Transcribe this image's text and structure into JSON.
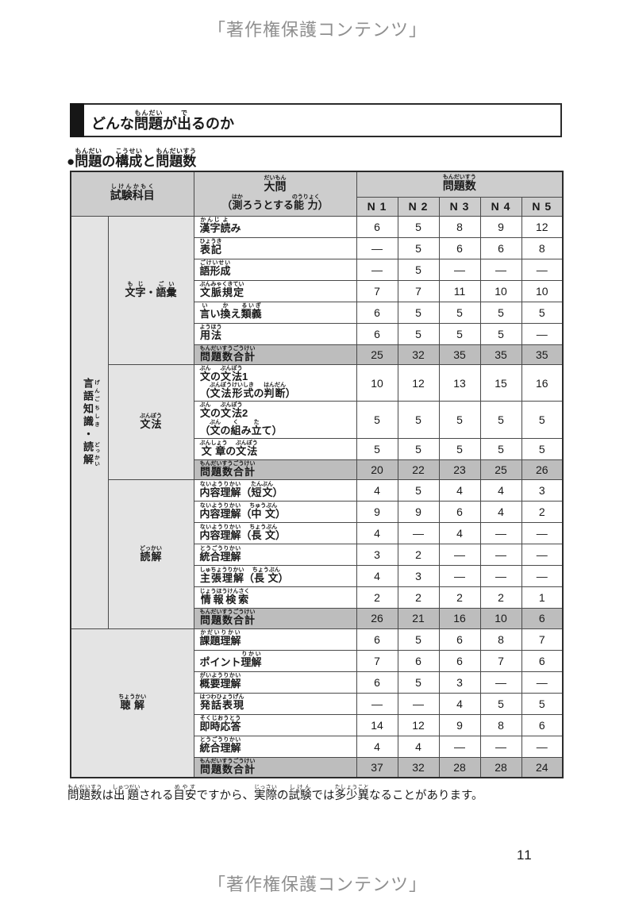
{
  "page": {
    "copyright_top": "「著作権保護コンテンツ」",
    "copyright_bottom": "「著作権保護コンテンツ」",
    "page_number": "11"
  },
  "heading": {
    "title": "どんな問題[もんだい]が出[で]るのか"
  },
  "section_title": "●問題[もんだい]の構成[こうせい]と問題数[もんだいすう]",
  "note": "問題数[もんだいすう]は出題[しゅつだい]される目安[めやす]ですから、実際[じっさい]の試験[しけん]では多少[たしょう]異[こと]なることがあります。",
  "colors": {
    "header_bg": "#cdcdcd",
    "label_bg": "#e4e4e4",
    "total_bg": "#bdbdbd",
    "text": "#1a1a1a",
    "copyright_gray": "#8f8f8f",
    "border": "#4a4a4a",
    "heading_bar": "#161616"
  },
  "table": {
    "headers": {
      "subject": "試験科目[しけんかもく]",
      "daimon_line1": "大問[だいもん]",
      "daimon_line2": "（測[はか]ろうとする能力[のうりょく]）",
      "question_count": "問題数[もんだいすう]",
      "levels": [
        "N 1",
        "N 2",
        "N 3",
        "N 4",
        "N 5"
      ]
    },
    "group_label": "言語[げんご]知識[ちしき]・読解[どっかい]",
    "sections": [
      {
        "label": "文字[もじ]・語彙[ごい]",
        "in_group": true,
        "rows": [
          {
            "label": [
              "漢字[かんじ]読[よ]み"
            ],
            "values": [
              "6",
              "5",
              "8",
              "9",
              "12"
            ],
            "total": false
          },
          {
            "label": [
              "表記[ひょうき]"
            ],
            "values": [
              "—",
              "5",
              "6",
              "6",
              "8"
            ],
            "total": false
          },
          {
            "label": [
              "語形成[ごけいせい]"
            ],
            "values": [
              "—",
              "5",
              "—",
              "—",
              "—"
            ],
            "total": false
          },
          {
            "label": [
              "文脈規定[ぶんみゃくきてい]"
            ],
            "values": [
              "7",
              "7",
              "11",
              "10",
              "10"
            ],
            "total": false
          },
          {
            "label": [
              "言[い]い換[か]え類義[るいぎ]"
            ],
            "values": [
              "6",
              "5",
              "5",
              "5",
              "5"
            ],
            "total": false
          },
          {
            "label": [
              "用法[ようほう]"
            ],
            "values": [
              "6",
              "5",
              "5",
              "5",
              "—"
            ],
            "total": false
          },
          {
            "label": [
              "問題数合計[もんだいすうごうけい]"
            ],
            "values": [
              "25",
              "32",
              "35",
              "35",
              "35"
            ],
            "total": true
          }
        ]
      },
      {
        "label": "文法[ぶんぽう]",
        "in_group": true,
        "rows": [
          {
            "label": [
              "文[ぶん]の文法[ぶんぽう]1",
              "（文法形式[ぶんぽうけいしき]の判断[はんだん]）"
            ],
            "values": [
              "10",
              "12",
              "13",
              "15",
              "16"
            ],
            "total": false
          },
          {
            "label": [
              "文[ぶん]の文法[ぶんぽう]2",
              "（文[ぶん]の組[く]み立[た]て）"
            ],
            "values": [
              "5",
              "5",
              "5",
              "5",
              "5"
            ],
            "total": false
          },
          {
            "label": [
              "文章[ぶんしょう]の文法[ぶんぽう]"
            ],
            "values": [
              "5",
              "5",
              "5",
              "5",
              "5"
            ],
            "total": false
          },
          {
            "label": [
              "問題数合計[もんだいすうごうけい]"
            ],
            "values": [
              "20",
              "22",
              "23",
              "25",
              "26"
            ],
            "total": true
          }
        ]
      },
      {
        "label": "読解[どっかい]",
        "in_group": true,
        "rows": [
          {
            "label": [
              "内容理解[ないようりかい]（短文[たんぶん]）"
            ],
            "values": [
              "4",
              "5",
              "4",
              "4",
              "3"
            ],
            "total": false
          },
          {
            "label": [
              "内容理解[ないようりかい]（中文[ちゅうぶん]）"
            ],
            "values": [
              "9",
              "9",
              "6",
              "4",
              "2"
            ],
            "total": false
          },
          {
            "label": [
              "内容理解[ないようりかい]（長文[ちょうぶん]）"
            ],
            "values": [
              "4",
              "—",
              "4",
              "—",
              "—"
            ],
            "total": false
          },
          {
            "label": [
              "統合理解[とうごうりかい]"
            ],
            "values": [
              "3",
              "2",
              "—",
              "—",
              "—"
            ],
            "total": false
          },
          {
            "label": [
              "主張理解[しゅちょうりかい]（長文[ちょうぶん]）"
            ],
            "values": [
              "4",
              "3",
              "—",
              "—",
              "—"
            ],
            "total": false
          },
          {
            "label": [
              "情報検索[じょうほうけんさく]"
            ],
            "values": [
              "2",
              "2",
              "2",
              "2",
              "1"
            ],
            "total": false
          },
          {
            "label": [
              "問題数合計[もんだいすうごうけい]"
            ],
            "values": [
              "26",
              "21",
              "16",
              "10",
              "6"
            ],
            "total": true
          }
        ]
      },
      {
        "label": "聴解[ちょうかい]",
        "in_group": false,
        "rows": [
          {
            "label": [
              "課題理解[かだいりかい]"
            ],
            "values": [
              "6",
              "5",
              "6",
              "8",
              "7"
            ],
            "total": false
          },
          {
            "label": [
              "ポイント理解[りかい]"
            ],
            "values": [
              "7",
              "6",
              "6",
              "7",
              "6"
            ],
            "total": false
          },
          {
            "label": [
              "概要理解[がいようりかい]"
            ],
            "values": [
              "6",
              "5",
              "3",
              "—",
              "—"
            ],
            "total": false
          },
          {
            "label": [
              "発話表現[はつわひょうげん]"
            ],
            "values": [
              "—",
              "—",
              "4",
              "5",
              "5"
            ],
            "total": false
          },
          {
            "label": [
              "即時応答[そくじおうとう]"
            ],
            "values": [
              "14",
              "12",
              "9",
              "8",
              "6"
            ],
            "total": false
          },
          {
            "label": [
              "統合理解[とうごうりかい]"
            ],
            "values": [
              "4",
              "4",
              "—",
              "—",
              "—"
            ],
            "total": false
          },
          {
            "label": [
              "問題数合計[もんだいすうごうけい]"
            ],
            "values": [
              "37",
              "32",
              "28",
              "28",
              "24"
            ],
            "total": true
          }
        ]
      }
    ]
  }
}
